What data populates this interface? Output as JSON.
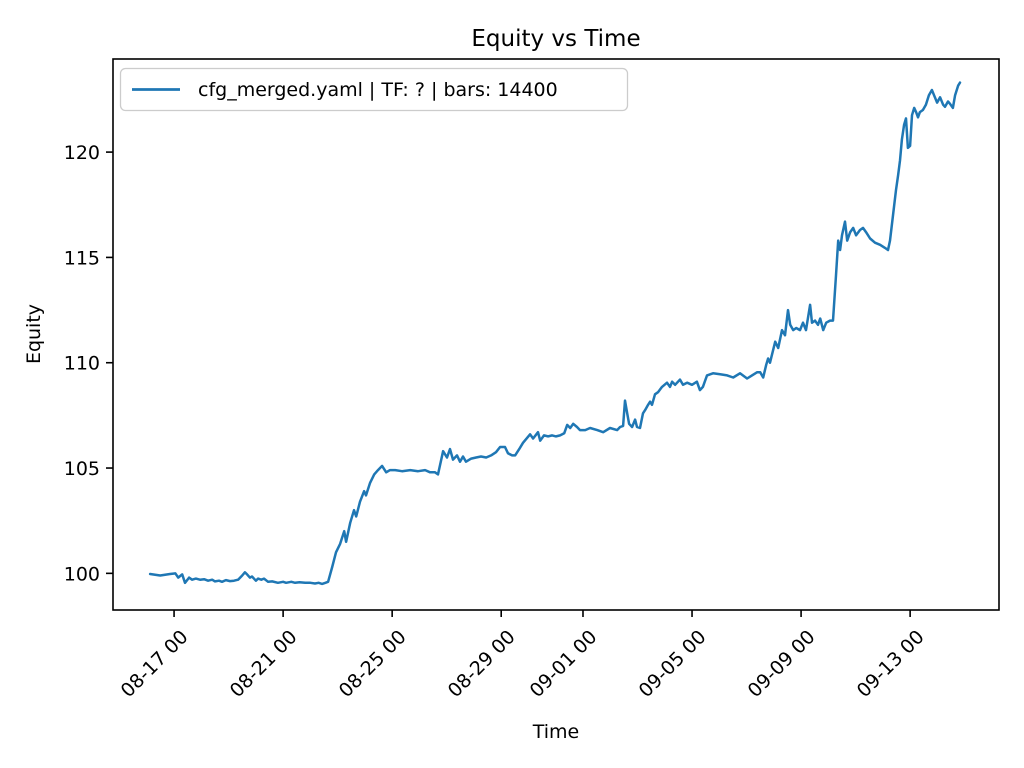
{
  "window": {
    "background_color": "#ffffff"
  },
  "chart_data": {
    "type": "line",
    "title": "Equity vs Time",
    "xlabel": "Time",
    "ylabel": "Equity",
    "legend": [
      "cfg_merged.yaml | TF: ? | bars: 14400"
    ],
    "legend_position": "upper left",
    "grid": false,
    "line_color": "#1f77b4",
    "axis_color": "#000000",
    "legend_border_color": "#cccccc",
    "x_unit": "days since 08-16 00:00",
    "xlim": [
      -1.24,
      31.26
    ],
    "ylim": [
      98.26,
      124.42
    ],
    "y_ticks": [
      100,
      105,
      110,
      115,
      120
    ],
    "x_ticks": [
      {
        "x": 1,
        "label": "08-17 00"
      },
      {
        "x": 5,
        "label": "08-21 00"
      },
      {
        "x": 9,
        "label": "08-25 00"
      },
      {
        "x": 13,
        "label": "08-29 00"
      },
      {
        "x": 16,
        "label": "09-01 00"
      },
      {
        "x": 20,
        "label": "09-05 00"
      },
      {
        "x": 24,
        "label": "09-09 00"
      },
      {
        "x": 28,
        "label": "09-13 00"
      }
    ],
    "series": [
      {
        "name": "cfg_merged.yaml | TF: ? | bars: 14400",
        "points": [
          [
            0.12,
            99.97
          ],
          [
            0.49,
            99.9
          ],
          [
            0.85,
            99.97
          ],
          [
            1.05,
            100.0
          ],
          [
            1.15,
            99.8
          ],
          [
            1.3,
            99.95
          ],
          [
            1.4,
            99.55
          ],
          [
            1.55,
            99.8
          ],
          [
            1.66,
            99.7
          ],
          [
            1.8,
            99.75
          ],
          [
            1.95,
            99.7
          ],
          [
            2.1,
            99.72
          ],
          [
            2.25,
            99.65
          ],
          [
            2.4,
            99.7
          ],
          [
            2.5,
            99.62
          ],
          [
            2.65,
            99.65
          ],
          [
            2.76,
            99.6
          ],
          [
            2.9,
            99.68
          ],
          [
            3.05,
            99.63
          ],
          [
            3.2,
            99.65
          ],
          [
            3.35,
            99.7
          ],
          [
            3.5,
            99.9
          ],
          [
            3.6,
            100.05
          ],
          [
            3.68,
            99.95
          ],
          [
            3.78,
            99.8
          ],
          [
            3.86,
            99.85
          ],
          [
            4.0,
            99.65
          ],
          [
            4.08,
            99.75
          ],
          [
            4.2,
            99.7
          ],
          [
            4.3,
            99.75
          ],
          [
            4.45,
            99.6
          ],
          [
            4.6,
            99.62
          ],
          [
            4.81,
            99.55
          ],
          [
            5.0,
            99.6
          ],
          [
            5.11,
            99.55
          ],
          [
            5.3,
            99.6
          ],
          [
            5.44,
            99.55
          ],
          [
            5.6,
            99.58
          ],
          [
            5.81,
            99.55
          ],
          [
            6.0,
            99.55
          ],
          [
            6.17,
            99.52
          ],
          [
            6.3,
            99.55
          ],
          [
            6.43,
            99.5
          ],
          [
            6.55,
            99.55
          ],
          [
            6.65,
            99.6
          ],
          [
            6.8,
            100.3
          ],
          [
            6.94,
            101.0
          ],
          [
            7.09,
            101.4
          ],
          [
            7.24,
            102.0
          ],
          [
            7.31,
            101.5
          ],
          [
            7.46,
            102.4
          ],
          [
            7.6,
            103.0
          ],
          [
            7.68,
            102.7
          ],
          [
            7.82,
            103.4
          ],
          [
            7.97,
            103.9
          ],
          [
            8.04,
            103.7
          ],
          [
            8.19,
            104.3
          ],
          [
            8.34,
            104.7
          ],
          [
            8.48,
            104.9
          ],
          [
            8.63,
            105.1
          ],
          [
            8.78,
            104.8
          ],
          [
            8.92,
            104.9
          ],
          [
            9.11,
            104.9
          ],
          [
            9.36,
            104.85
          ],
          [
            9.66,
            104.9
          ],
          [
            9.95,
            104.85
          ],
          [
            10.21,
            104.9
          ],
          [
            10.39,
            104.8
          ],
          [
            10.57,
            104.8
          ],
          [
            10.68,
            104.7
          ],
          [
            10.87,
            105.8
          ],
          [
            11.01,
            105.5
          ],
          [
            11.12,
            105.9
          ],
          [
            11.23,
            105.4
          ],
          [
            11.38,
            105.6
          ],
          [
            11.49,
            105.3
          ],
          [
            11.6,
            105.55
          ],
          [
            11.71,
            105.3
          ],
          [
            11.9,
            105.45
          ],
          [
            12.08,
            105.5
          ],
          [
            12.26,
            105.55
          ],
          [
            12.45,
            105.5
          ],
          [
            12.63,
            105.6
          ],
          [
            12.81,
            105.75
          ],
          [
            12.96,
            106.0
          ],
          [
            13.14,
            106.0
          ],
          [
            13.25,
            105.7
          ],
          [
            13.4,
            105.6
          ],
          [
            13.51,
            105.6
          ],
          [
            13.66,
            105.9
          ],
          [
            13.8,
            106.2
          ],
          [
            14.06,
            106.6
          ],
          [
            14.17,
            106.4
          ],
          [
            14.35,
            106.7
          ],
          [
            14.43,
            106.3
          ],
          [
            14.57,
            106.55
          ],
          [
            14.72,
            106.5
          ],
          [
            14.87,
            106.55
          ],
          [
            15.01,
            106.5
          ],
          [
            15.16,
            106.55
          ],
          [
            15.31,
            106.65
          ],
          [
            15.42,
            107.05
          ],
          [
            15.53,
            106.9
          ],
          [
            15.64,
            107.1
          ],
          [
            15.78,
            106.95
          ],
          [
            15.89,
            106.8
          ],
          [
            16.08,
            106.8
          ],
          [
            16.26,
            106.9
          ],
          [
            16.52,
            106.8
          ],
          [
            16.74,
            106.7
          ],
          [
            16.99,
            106.9
          ],
          [
            17.25,
            106.8
          ],
          [
            17.36,
            106.95
          ],
          [
            17.47,
            107.0
          ],
          [
            17.54,
            108.2
          ],
          [
            17.62,
            107.6
          ],
          [
            17.69,
            107.1
          ],
          [
            17.8,
            106.95
          ],
          [
            17.91,
            107.3
          ],
          [
            17.98,
            106.95
          ],
          [
            18.09,
            106.9
          ],
          [
            18.2,
            107.6
          ],
          [
            18.28,
            107.75
          ],
          [
            18.39,
            108.0
          ],
          [
            18.46,
            108.15
          ],
          [
            18.53,
            108.0
          ],
          [
            18.64,
            108.5
          ],
          [
            18.75,
            108.6
          ],
          [
            18.9,
            108.85
          ],
          [
            19.08,
            109.05
          ],
          [
            19.19,
            108.85
          ],
          [
            19.27,
            109.1
          ],
          [
            19.38,
            108.95
          ],
          [
            19.56,
            109.2
          ],
          [
            19.67,
            108.95
          ],
          [
            19.82,
            109.05
          ],
          [
            20.0,
            108.95
          ],
          [
            20.18,
            109.1
          ],
          [
            20.29,
            108.7
          ],
          [
            20.4,
            108.85
          ],
          [
            20.55,
            109.4
          ],
          [
            20.77,
            109.5
          ],
          [
            21.03,
            109.45
          ],
          [
            21.29,
            109.4
          ],
          [
            21.51,
            109.3
          ],
          [
            21.76,
            109.5
          ],
          [
            22.02,
            109.25
          ],
          [
            22.2,
            109.4
          ],
          [
            22.39,
            109.55
          ],
          [
            22.5,
            109.55
          ],
          [
            22.61,
            109.3
          ],
          [
            22.72,
            109.9
          ],
          [
            22.79,
            110.2
          ],
          [
            22.86,
            110.0
          ],
          [
            23.05,
            111.0
          ],
          [
            23.16,
            110.7
          ],
          [
            23.3,
            111.55
          ],
          [
            23.41,
            111.3
          ],
          [
            23.52,
            112.5
          ],
          [
            23.6,
            111.8
          ],
          [
            23.71,
            111.55
          ],
          [
            23.82,
            111.65
          ],
          [
            23.96,
            111.55
          ],
          [
            24.07,
            111.9
          ],
          [
            24.18,
            111.55
          ],
          [
            24.33,
            112.75
          ],
          [
            24.4,
            111.9
          ],
          [
            24.51,
            112.0
          ],
          [
            24.62,
            111.8
          ],
          [
            24.7,
            112.1
          ],
          [
            24.81,
            111.55
          ],
          [
            24.92,
            111.9
          ],
          [
            25.06,
            112.0
          ],
          [
            25.17,
            112.0
          ],
          [
            25.28,
            114.15
          ],
          [
            25.36,
            115.8
          ],
          [
            25.43,
            115.35
          ],
          [
            25.5,
            116.05
          ],
          [
            25.61,
            116.7
          ],
          [
            25.69,
            115.8
          ],
          [
            25.8,
            116.2
          ],
          [
            25.91,
            116.4
          ],
          [
            26.02,
            116.05
          ],
          [
            26.16,
            116.3
          ],
          [
            26.27,
            116.4
          ],
          [
            26.38,
            116.2
          ],
          [
            26.53,
            115.9
          ],
          [
            26.71,
            115.7
          ],
          [
            26.9,
            115.6
          ],
          [
            27.08,
            115.45
          ],
          [
            27.19,
            115.35
          ],
          [
            27.26,
            115.8
          ],
          [
            27.37,
            117.0
          ],
          [
            27.48,
            118.2
          ],
          [
            27.56,
            118.9
          ],
          [
            27.63,
            119.6
          ],
          [
            27.7,
            120.6
          ],
          [
            27.78,
            121.3
          ],
          [
            27.85,
            121.6
          ],
          [
            27.92,
            120.2
          ],
          [
            28.0,
            120.3
          ],
          [
            28.07,
            121.75
          ],
          [
            28.15,
            122.1
          ],
          [
            28.22,
            121.9
          ],
          [
            28.29,
            121.65
          ],
          [
            28.36,
            121.9
          ],
          [
            28.47,
            122.0
          ],
          [
            28.58,
            122.25
          ],
          [
            28.69,
            122.7
          ],
          [
            28.8,
            122.95
          ],
          [
            28.91,
            122.6
          ],
          [
            28.99,
            122.35
          ],
          [
            29.1,
            122.6
          ],
          [
            29.21,
            122.25
          ],
          [
            29.28,
            122.15
          ],
          [
            29.39,
            122.4
          ],
          [
            29.46,
            122.3
          ],
          [
            29.57,
            122.1
          ],
          [
            29.65,
            122.7
          ],
          [
            29.76,
            123.15
          ],
          [
            29.83,
            123.3
          ]
        ]
      }
    ]
  }
}
